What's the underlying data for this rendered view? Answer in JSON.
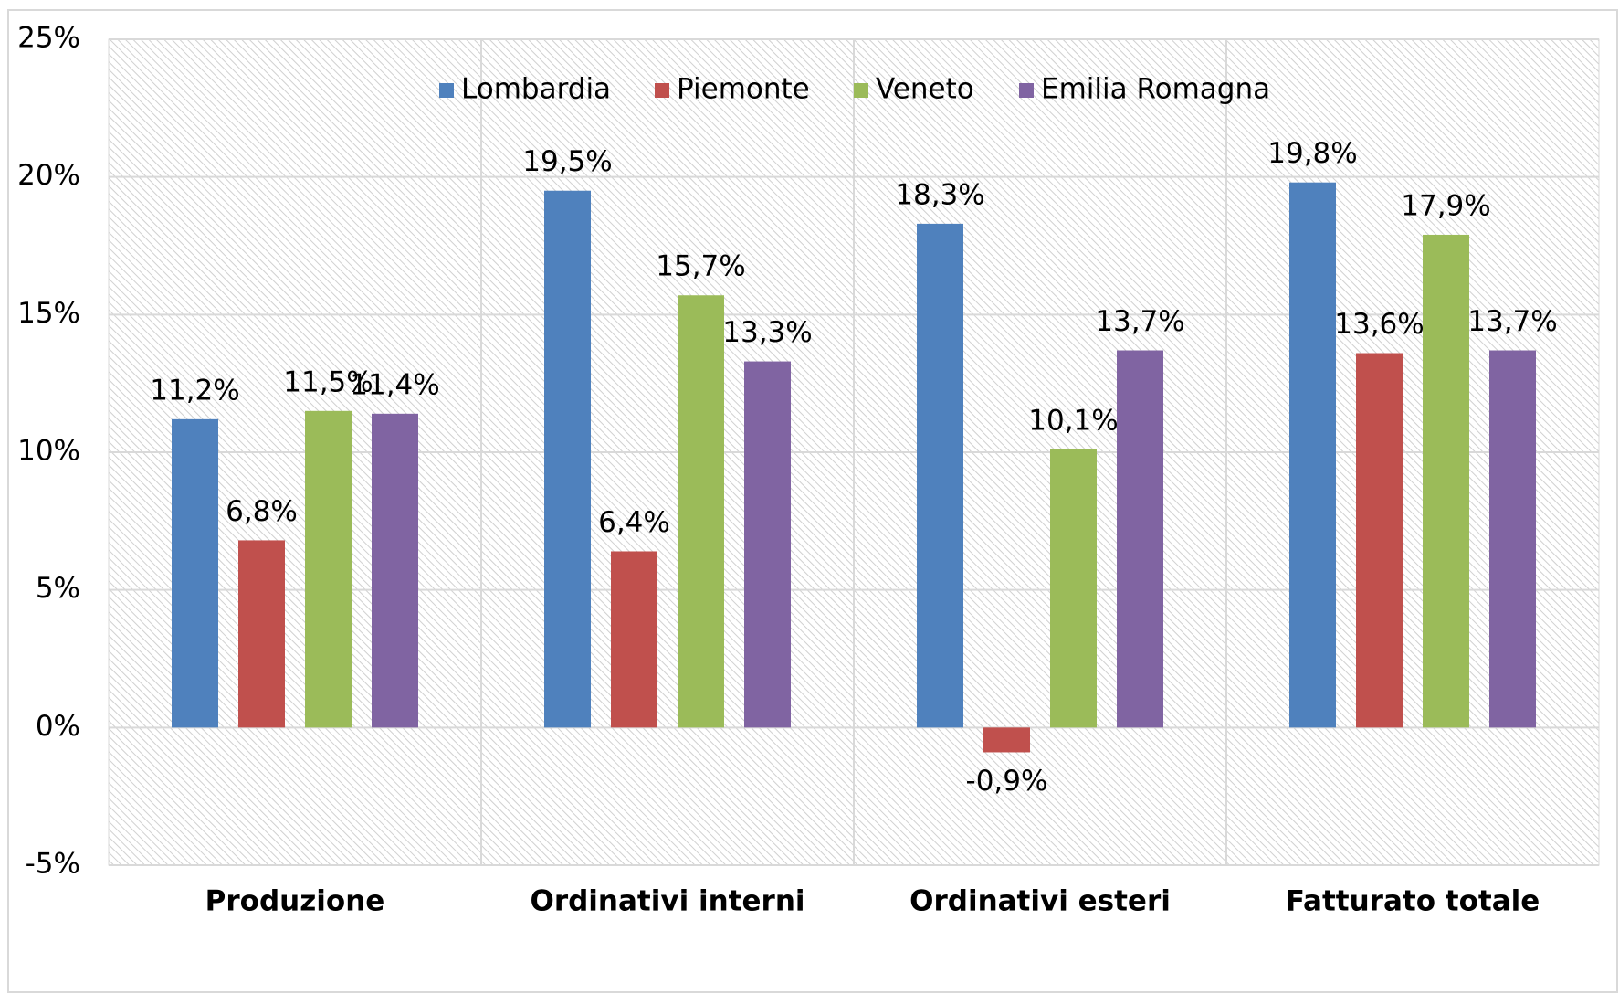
{
  "chart_data": {
    "type": "bar",
    "categories": [
      "Produzione",
      "Ordinativi interni",
      "Ordinativi esteri",
      "Fatturato totale"
    ],
    "series": [
      {
        "name": "Lombardia",
        "color": "#4f81bd",
        "values": [
          11.2,
          19.5,
          18.3,
          19.8
        ],
        "value_labels": [
          "11,2%",
          "19,5%",
          "18,3%",
          "19,8%"
        ]
      },
      {
        "name": "Piemonte",
        "color": "#c0504d",
        "values": [
          6.8,
          6.4,
          -0.9,
          13.6
        ],
        "value_labels": [
          "6,8%",
          "6,4%",
          "-0,9%",
          "13,6%"
        ]
      },
      {
        "name": "Veneto",
        "color": "#9bbb59",
        "values": [
          11.5,
          15.7,
          10.1,
          17.9
        ],
        "value_labels": [
          "11,5%",
          "15,7%",
          "10,1%",
          "17,9%"
        ]
      },
      {
        "name": "Emilia Romagna",
        "color": "#8064a2",
        "values": [
          11.4,
          13.3,
          13.7,
          13.7
        ],
        "value_labels": [
          "11,4%",
          "13,3%",
          "13,7%",
          "13,7%"
        ]
      }
    ],
    "ylim": [
      -5,
      25
    ],
    "yticks": [
      {
        "value": -5,
        "label": "-5%"
      },
      {
        "value": 0,
        "label": "0%"
      },
      {
        "value": 5,
        "label": "5%"
      },
      {
        "value": 10,
        "label": "10%"
      },
      {
        "value": 15,
        "label": "15%"
      },
      {
        "value": 20,
        "label": "20%"
      },
      {
        "value": 25,
        "label": "25%"
      }
    ],
    "grid": true,
    "legend": "top"
  }
}
